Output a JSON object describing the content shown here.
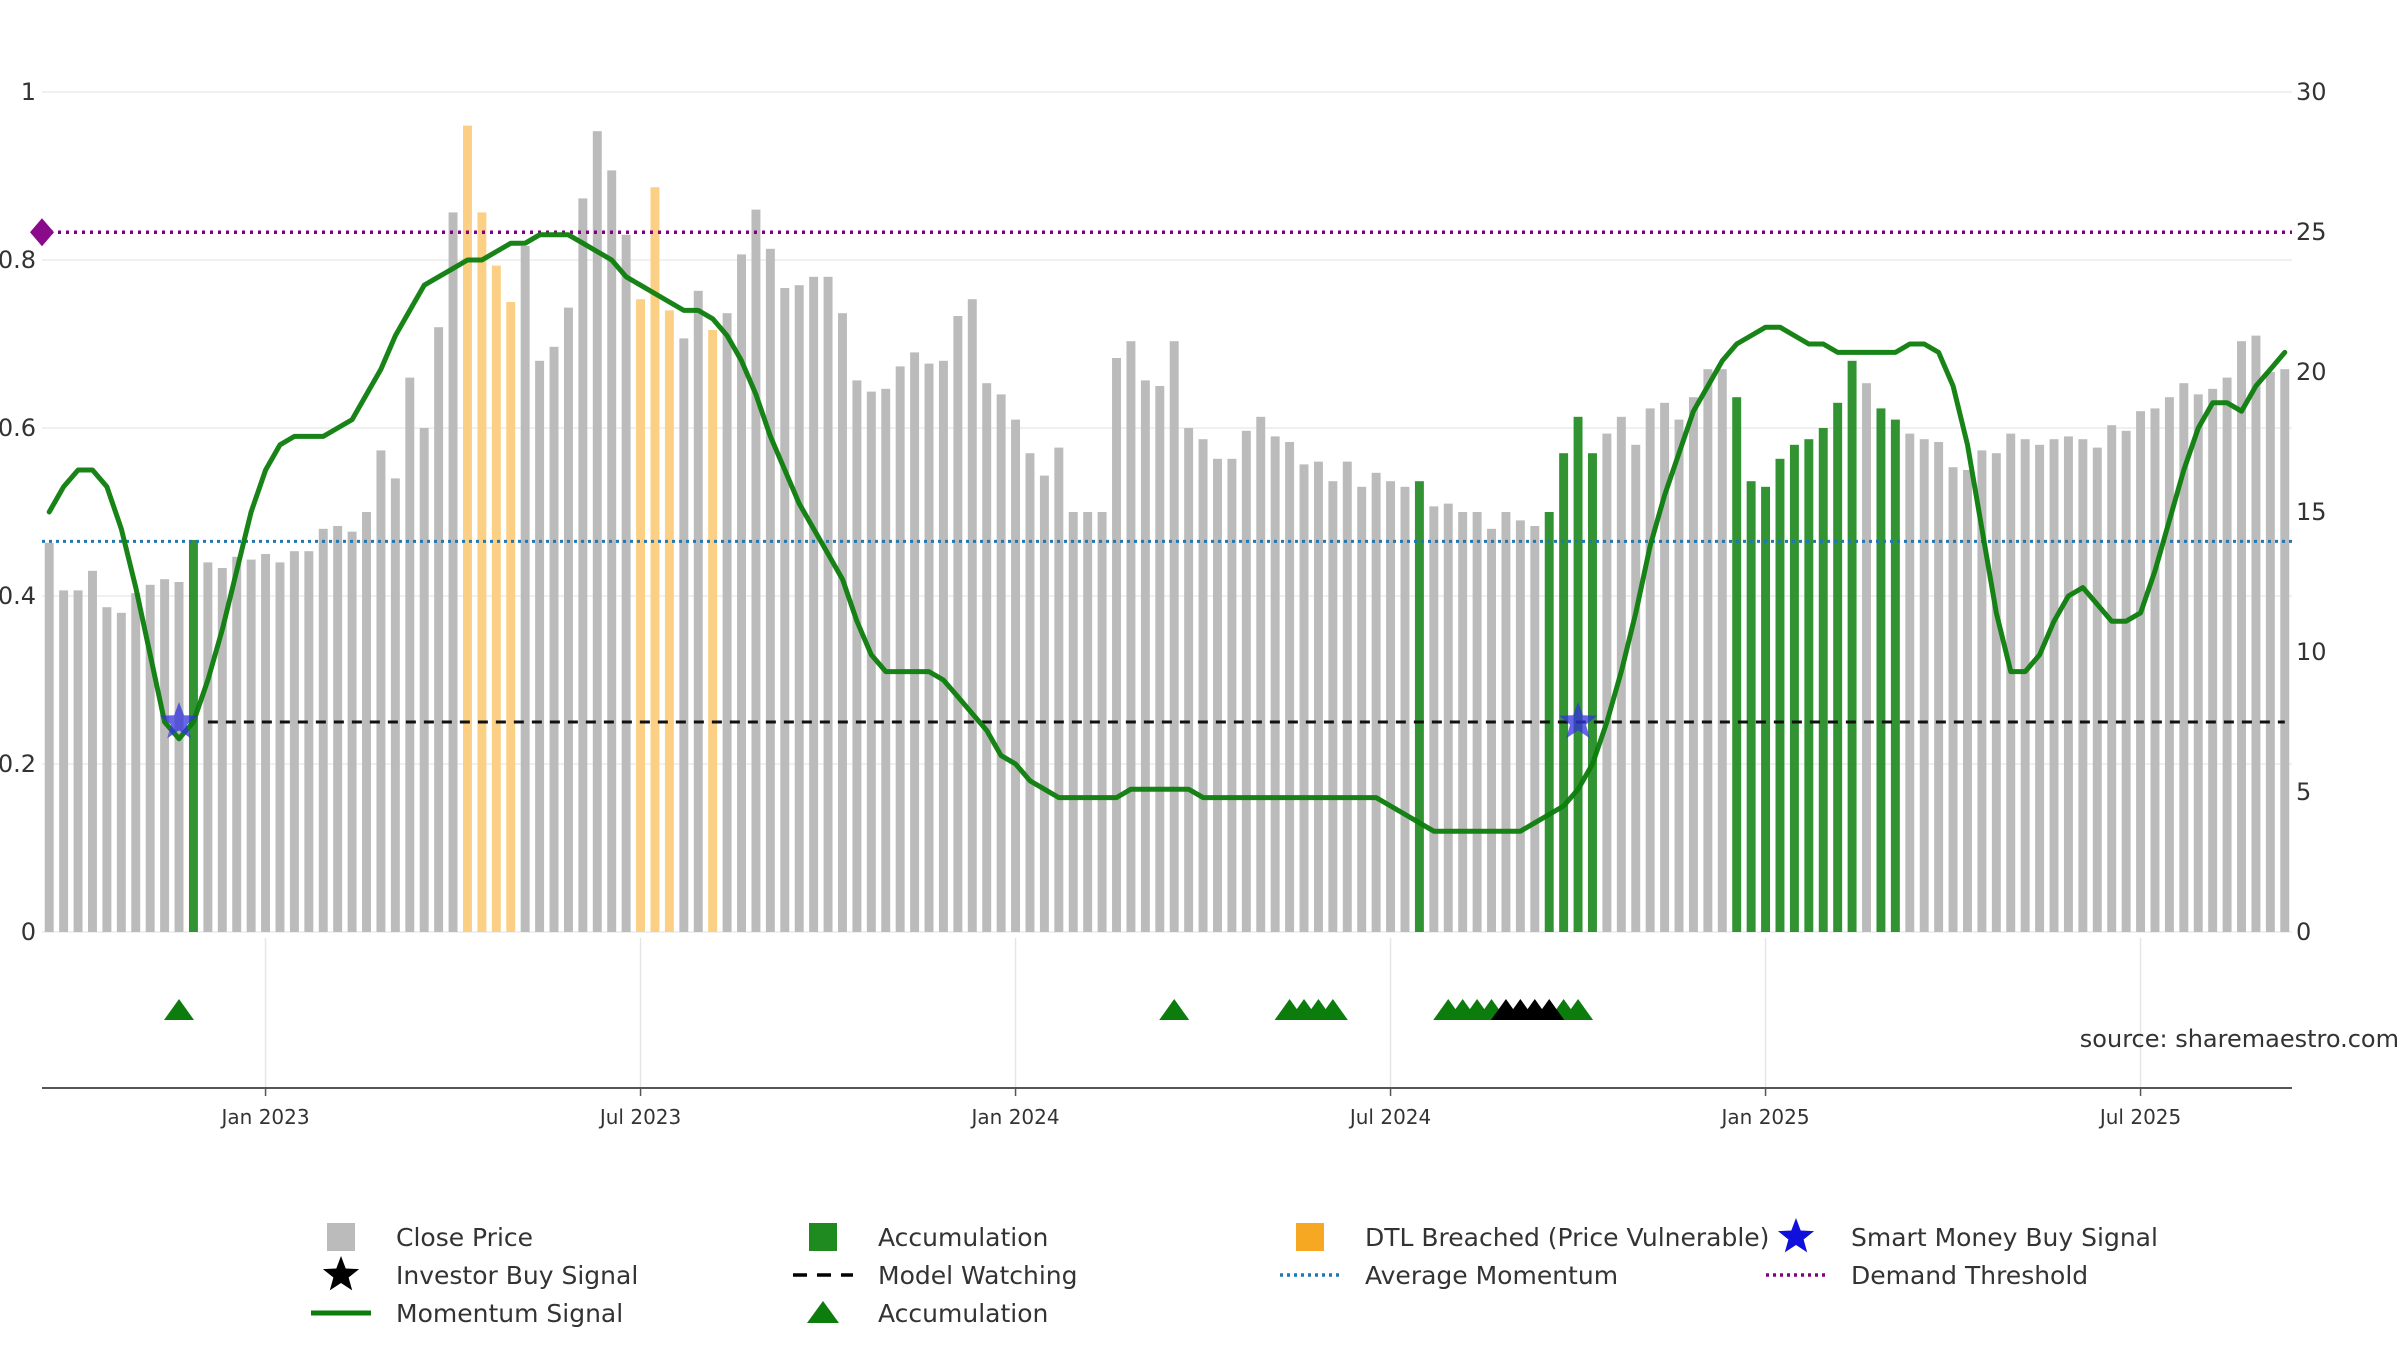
{
  "chart_data": {
    "type": "bar",
    "title": "",
    "xlabel": "",
    "ylabel": "",
    "y_left": {
      "range": [
        0,
        1
      ],
      "ticks": [
        0,
        0.2,
        0.4,
        0.6,
        0.8,
        1
      ],
      "tick_labels": [
        "0",
        "0.2",
        "0.4",
        "0.6",
        "0.8",
        "1"
      ]
    },
    "y_right": {
      "range": [
        0,
        30
      ],
      "ticks": [
        0,
        5,
        10,
        15,
        20,
        25,
        30
      ],
      "tick_labels": [
        "0",
        "5",
        "10",
        "15",
        "20",
        "25",
        "30"
      ]
    },
    "x_range_week_index": [
      -0.5,
      155.5
    ],
    "x_ticks": [
      {
        "week": 15,
        "label": "Jan 2023"
      },
      {
        "week": 41,
        "label": "Jul 2023"
      },
      {
        "week": 67,
        "label": "Jan 2024"
      },
      {
        "week": 93,
        "label": "Jul 2024"
      },
      {
        "week": 119,
        "label": "Jan 2025"
      },
      {
        "week": 145,
        "label": "Jul 2025"
      }
    ],
    "grid": true,
    "source_text": "source: sharemaestro.com",
    "bar_categories": [
      "close",
      "accumulation",
      "dtl"
    ],
    "close_price": [
      13.9,
      12.2,
      12.2,
      12.9,
      11.6,
      11.4,
      12.1,
      12.4,
      12.6,
      12.5,
      14.0,
      13.2,
      13.0,
      13.4,
      13.3,
      13.5,
      13.2,
      13.6,
      13.6,
      14.4,
      14.5,
      14.3,
      15.0,
      17.2,
      16.2,
      19.8,
      18.0,
      21.6,
      25.7,
      28.8,
      25.7,
      23.8,
      22.5,
      24.5,
      20.4,
      20.9,
      22.3,
      26.2,
      28.6,
      27.2,
      24.9,
      22.6,
      26.6,
      22.2,
      21.2,
      22.9,
      21.5,
      22.1,
      24.2,
      25.8,
      24.4,
      23.0,
      23.1,
      23.4,
      23.4,
      22.1,
      19.7,
      19.3,
      19.4,
      20.2,
      20.7,
      20.3,
      20.4,
      22.0,
      22.6,
      19.6,
      19.2,
      18.3,
      17.1,
      16.3,
      17.3,
      15.0,
      15.0,
      15.0,
      20.5,
      21.1,
      19.7,
      19.5,
      21.1,
      18.0,
      17.6,
      16.9,
      16.9,
      17.9,
      18.4,
      17.7,
      17.5,
      16.7,
      16.8,
      16.1,
      16.8,
      15.9,
      16.4,
      16.1,
      15.9,
      16.1,
      15.2,
      15.3,
      15.0,
      15.0,
      14.4,
      15.0,
      14.7,
      14.5,
      15.0,
      17.1,
      18.4,
      17.1,
      17.8,
      18.4,
      17.4,
      18.7,
      18.9,
      18.3,
      19.1,
      20.1,
      20.1,
      19.1,
      16.1,
      15.9,
      16.9,
      17.4,
      17.6,
      18.0,
      18.9,
      20.4,
      19.6,
      18.7,
      18.3,
      17.8,
      17.6,
      17.5,
      16.6,
      16.5,
      17.2,
      17.1,
      17.8,
      17.6,
      17.4,
      17.6,
      17.7,
      17.6,
      17.3,
      18.1,
      17.9,
      18.6,
      18.7,
      19.1,
      19.6,
      19.2,
      19.4,
      19.8,
      21.1,
      21.3,
      20.0,
      20.1
    ],
    "bar_state": "ggggggggggaggggggggggggggggggddddggggggggdddggdggggggggggggggggggggggggggggggggggggggggggggggggaggggggggaaaagggggggggaaaaaaaaagaaggggggggggggggggggggggggggggggggggggggggggg",
    "momentum_signal": [
      0.5,
      0.53,
      0.55,
      0.55,
      0.53,
      0.48,
      0.41,
      0.33,
      0.25,
      0.23,
      0.25,
      0.3,
      0.36,
      0.43,
      0.5,
      0.55,
      0.58,
      0.59,
      0.59,
      0.59,
      0.6,
      0.61,
      0.64,
      0.67,
      0.71,
      0.74,
      0.77,
      0.78,
      0.79,
      0.8,
      0.8,
      0.81,
      0.82,
      0.82,
      0.83,
      0.83,
      0.83,
      0.82,
      0.81,
      0.8,
      0.78,
      0.77,
      0.76,
      0.75,
      0.74,
      0.74,
      0.73,
      0.71,
      0.68,
      0.64,
      0.59,
      0.55,
      0.51,
      0.48,
      0.45,
      0.42,
      0.37,
      0.33,
      0.31,
      0.31,
      0.31,
      0.31,
      0.3,
      0.28,
      0.26,
      0.24,
      0.21,
      0.2,
      0.18,
      0.17,
      0.16,
      0.16,
      0.16,
      0.16,
      0.16,
      0.17,
      0.17,
      0.17,
      0.17,
      0.17,
      0.16,
      0.16,
      0.16,
      0.16,
      0.16,
      0.16,
      0.16,
      0.16,
      0.16,
      0.16,
      0.16,
      0.16,
      0.16,
      0.15,
      0.14,
      0.13,
      0.12,
      0.12,
      0.12,
      0.12,
      0.12,
      0.12,
      0.12,
      0.13,
      0.14,
      0.15,
      0.17,
      0.2,
      0.25,
      0.31,
      0.38,
      0.46,
      0.52,
      0.57,
      0.62,
      0.65,
      0.68,
      0.7,
      0.71,
      0.72,
      0.72,
      0.71,
      0.7,
      0.7,
      0.69,
      0.69,
      0.69,
      0.69,
      0.69,
      0.7,
      0.7,
      0.69,
      0.65,
      0.58,
      0.48,
      0.38,
      0.31,
      0.31,
      0.33,
      0.37,
      0.4,
      0.41,
      0.39,
      0.37,
      0.37,
      0.38,
      0.43,
      0.49,
      0.55,
      0.6,
      0.63,
      0.63,
      0.62,
      0.65,
      0.67,
      0.69
    ],
    "average_momentum": 0.465,
    "demand_threshold": 0.833,
    "model_watching_level": 0.25,
    "model_watching_range": [
      11,
      155
    ],
    "smart_money_buy_signals": [
      {
        "week": 9,
        "value": 0.25
      },
      {
        "week": 106,
        "value": 0.25
      }
    ],
    "accumulation_markers_weeks": [
      9,
      78,
      86,
      87,
      88,
      89,
      97,
      98,
      99,
      100,
      105,
      106
    ],
    "investor_buy_signal_weeks": [
      101,
      102,
      103,
      104
    ],
    "series": [
      {
        "name": "Close Price",
        "axis": "right",
        "kind": "bar",
        "color": "#bbbbbb"
      },
      {
        "name": "Accumulation",
        "axis": "right",
        "kind": "bar",
        "color": "#1f8a1f"
      },
      {
        "name": "DTL Breached (Price Vulnerable)",
        "axis": "right",
        "kind": "bar",
        "color": "#f7a823"
      },
      {
        "name": "Smart Money Buy Signal",
        "axis": "left",
        "kind": "star",
        "color": "#1010dd"
      },
      {
        "name": "Investor Buy Signal",
        "axis": "left",
        "kind": "star",
        "color": "#000000"
      },
      {
        "name": "Model Watching",
        "axis": "left",
        "kind": "dashed-line",
        "color": "#000000"
      },
      {
        "name": "Average Momentum",
        "axis": "left",
        "kind": "dotted-line",
        "color": "#1f77b4"
      },
      {
        "name": "Momentum Signal",
        "axis": "left",
        "kind": "line",
        "color": "#0c7d0c"
      },
      {
        "name": "Accumulation",
        "axis": "marker-row",
        "kind": "triangle",
        "color": "#0c7d0c"
      },
      {
        "name": "Demand Threshold",
        "axis": "left",
        "kind": "dotted-line",
        "color": "#800080"
      }
    ]
  },
  "legend": {
    "items": [
      {
        "label": "Close Price",
        "icon": "gray-square",
        "color": "#bbbbbb"
      },
      {
        "label": "Accumulation",
        "icon": "green-square",
        "color": "#1f8a1f"
      },
      {
        "label": "DTL Breached (Price Vulnerable)",
        "icon": "orange-square",
        "color": "#f7a823"
      },
      {
        "label": "Smart Money Buy Signal",
        "icon": "blue-star",
        "color": "#1010dd"
      },
      {
        "label": "Investor Buy Signal",
        "icon": "black-star",
        "color": "#000000"
      },
      {
        "label": "Model Watching",
        "icon": "black-dashed-line",
        "color": "#000000"
      },
      {
        "label": "Average Momentum",
        "icon": "blue-dotted-line",
        "color": "#1f77b4"
      },
      {
        "label": "Demand Threshold",
        "icon": "purple-dotted-line",
        "color": "#800080"
      },
      {
        "label": "Momentum Signal",
        "icon": "green-solid-line",
        "color": "#0c7d0c"
      },
      {
        "label": "Accumulation",
        "icon": "green-triangle",
        "color": "#0c7d0c"
      }
    ]
  }
}
